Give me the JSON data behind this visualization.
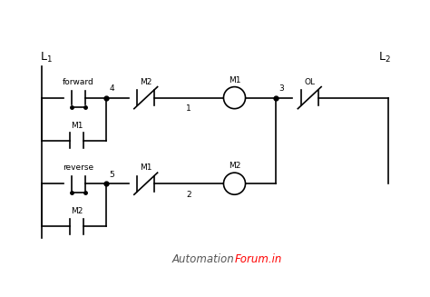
{
  "background_color": "#ffffff",
  "line_color": "#000000",
  "fig_width": 4.74,
  "fig_height": 3.27,
  "dpi": 100,
  "L1_label": "L$_1$",
  "L2_label": "L$_2$",
  "forward_label": "forward",
  "reverse_label": "reverse",
  "M1_label": "M1",
  "M2_label": "M2",
  "OL_label": "OL",
  "node4_label": "4",
  "node5_label": "5",
  "node1_label": "1",
  "node2_label": "2",
  "node3_label": "3",
  "automation_text": "Automation",
  "forum_text": "Forum.in"
}
